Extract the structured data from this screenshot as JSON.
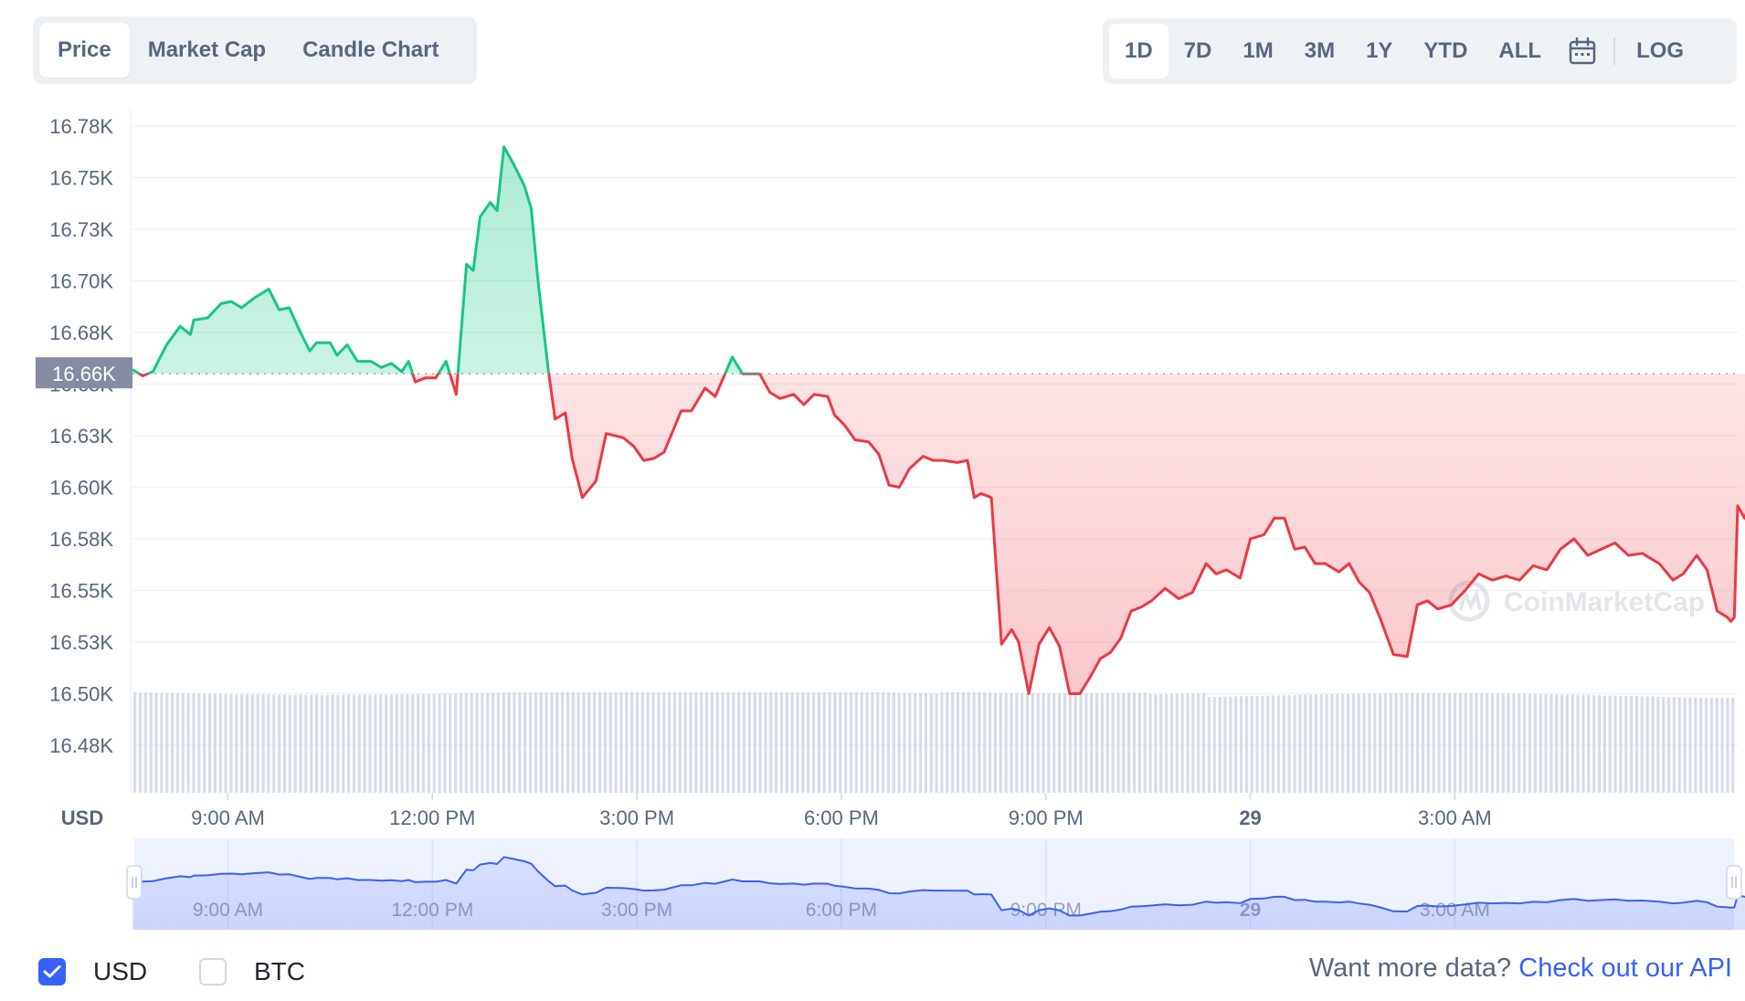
{
  "view_tabs": [
    "Price",
    "Market Cap",
    "Candle Chart"
  ],
  "range_tabs": [
    "1D",
    "7D",
    "1M",
    "3M",
    "1Y",
    "YTD",
    "ALL"
  ],
  "log_label": "LOG",
  "options": {
    "usd": "USD",
    "btc": "BTC"
  },
  "api": {
    "text": "Want more data?",
    "link": "Check out our API"
  },
  "watermark": "CoinMarketCap",
  "colors": {
    "up": "#16c784",
    "down": "#ea3943",
    "accent": "#3861fb"
  },
  "chart_data": {
    "type": "line",
    "currency_label": "USD",
    "y_ticks": [
      "16.78K",
      "16.75K",
      "16.73K",
      "16.70K",
      "16.68K",
      "16.65K",
      "16.63K",
      "16.60K",
      "16.58K",
      "16.55K",
      "16.53K",
      "16.50K",
      "16.48K"
    ],
    "ylim": [
      16460,
      16790
    ],
    "reference_value": 16660,
    "reference_label": "16.66K",
    "x_ticks": [
      "9:00 AM",
      "12:00 PM",
      "3:00 PM",
      "6:00 PM",
      "9:00 PM",
      "29",
      "3:00 AM"
    ],
    "x_range_hours": [
      7.6,
      31.15
    ],
    "series": [
      {
        "values": [
          [
            7.6,
            16662
          ],
          [
            7.75,
            16659
          ],
          [
            7.9,
            16661
          ],
          [
            8.1,
            16674
          ],
          [
            8.3,
            16683
          ],
          [
            8.45,
            16679
          ],
          [
            8.5,
            16686
          ],
          [
            8.7,
            16687
          ],
          [
            8.9,
            16694
          ],
          [
            9.05,
            16695
          ],
          [
            9.2,
            16692
          ],
          [
            9.4,
            16697
          ],
          [
            9.6,
            16701
          ],
          [
            9.75,
            16691
          ],
          [
            9.9,
            16692
          ],
          [
            10.05,
            16681
          ],
          [
            10.2,
            16671
          ],
          [
            10.3,
            16675
          ],
          [
            10.5,
            16675
          ],
          [
            10.6,
            16669
          ],
          [
            10.75,
            16674
          ],
          [
            10.9,
            16666
          ],
          [
            11.1,
            16666
          ],
          [
            11.25,
            16663
          ],
          [
            11.4,
            16665
          ],
          [
            11.55,
            16661
          ],
          [
            11.65,
            16666
          ],
          [
            11.75,
            16656
          ],
          [
            11.9,
            16658
          ],
          [
            12.05,
            16658
          ],
          [
            12.2,
            16666
          ],
          [
            12.35,
            16650
          ],
          [
            12.5,
            16713
          ],
          [
            12.6,
            16710
          ],
          [
            12.7,
            16736
          ],
          [
            12.85,
            16743
          ],
          [
            12.95,
            16739
          ],
          [
            13.05,
            16770
          ],
          [
            13.2,
            16761
          ],
          [
            13.35,
            16751
          ],
          [
            13.45,
            16740
          ],
          [
            13.55,
            16705
          ],
          [
            13.7,
            16662
          ],
          [
            13.8,
            16638
          ],
          [
            13.95,
            16641
          ],
          [
            14.05,
            16619
          ],
          [
            14.2,
            16600
          ],
          [
            14.4,
            16608
          ],
          [
            14.55,
            16631
          ],
          [
            14.8,
            16629
          ],
          [
            14.95,
            16625
          ],
          [
            15.1,
            16618
          ],
          [
            15.25,
            16619
          ],
          [
            15.4,
            16622
          ],
          [
            15.65,
            16642
          ],
          [
            15.8,
            16642
          ],
          [
            16.0,
            16653
          ],
          [
            16.15,
            16649
          ],
          [
            16.4,
            16668
          ],
          [
            16.55,
            16660
          ],
          [
            16.8,
            16660
          ],
          [
            16.95,
            16651
          ],
          [
            17.1,
            16648
          ],
          [
            17.3,
            16650
          ],
          [
            17.45,
            16645
          ],
          [
            17.6,
            16650
          ],
          [
            17.8,
            16649
          ],
          [
            17.9,
            16640
          ],
          [
            18.05,
            16635
          ],
          [
            18.2,
            16628
          ],
          [
            18.4,
            16627
          ],
          [
            18.55,
            16621
          ],
          [
            18.7,
            16606
          ],
          [
            18.85,
            16605
          ],
          [
            19.0,
            16614
          ],
          [
            19.2,
            16620
          ],
          [
            19.35,
            16618
          ],
          [
            19.5,
            16618
          ],
          [
            19.7,
            16617
          ],
          [
            19.85,
            16618
          ],
          [
            19.95,
            16600
          ],
          [
            20.05,
            16602
          ],
          [
            20.2,
            16600
          ],
          [
            20.35,
            16529
          ],
          [
            20.5,
            16536
          ],
          [
            20.6,
            16530
          ],
          [
            20.75,
            16505
          ],
          [
            20.9,
            16529
          ],
          [
            21.05,
            16537
          ],
          [
            21.2,
            16528
          ],
          [
            21.35,
            16505
          ],
          [
            21.5,
            16505
          ],
          [
            21.65,
            16513
          ],
          [
            21.8,
            16522
          ],
          [
            21.95,
            16525
          ],
          [
            22.1,
            16532
          ],
          [
            22.25,
            16545
          ],
          [
            22.4,
            16547
          ],
          [
            22.55,
            16550
          ],
          [
            22.75,
            16556
          ],
          [
            22.95,
            16551
          ],
          [
            23.15,
            16554
          ],
          [
            23.35,
            16568
          ],
          [
            23.5,
            16563
          ],
          [
            23.65,
            16565
          ],
          [
            23.85,
            16561
          ],
          [
            24.0,
            16580
          ],
          [
            24.2,
            16582
          ],
          [
            24.35,
            16590
          ],
          [
            24.5,
            16590
          ],
          [
            24.65,
            16575
          ],
          [
            24.8,
            16576
          ],
          [
            24.95,
            16568
          ],
          [
            25.1,
            16568
          ],
          [
            25.3,
            16564
          ],
          [
            25.45,
            16568
          ],
          [
            25.6,
            16559
          ],
          [
            25.75,
            16554
          ],
          [
            25.9,
            16542
          ],
          [
            26.1,
            16524
          ],
          [
            26.3,
            16523
          ],
          [
            26.45,
            16548
          ],
          [
            26.6,
            16550
          ],
          [
            26.75,
            16546
          ],
          [
            26.95,
            16548
          ],
          [
            27.15,
            16555
          ],
          [
            27.35,
            16563
          ],
          [
            27.55,
            16560
          ],
          [
            27.75,
            16562
          ],
          [
            27.95,
            16560
          ],
          [
            28.15,
            16567
          ],
          [
            28.35,
            16565
          ],
          [
            28.55,
            16575
          ],
          [
            28.75,
            16580
          ],
          [
            28.95,
            16572
          ],
          [
            29.15,
            16575
          ],
          [
            29.35,
            16578
          ],
          [
            29.55,
            16572
          ],
          [
            29.75,
            16573
          ],
          [
            30.0,
            16568
          ],
          [
            30.2,
            16560
          ],
          [
            30.35,
            16563
          ],
          [
            30.55,
            16572
          ],
          [
            30.7,
            16565
          ],
          [
            30.85,
            16545
          ],
          [
            31.0,
            16542
          ],
          [
            31.05,
            16540
          ],
          [
            31.1,
            16542
          ],
          [
            31.15,
            16596
          ],
          [
            31.25,
            16590
          ],
          [
            31.35,
            16599
          ],
          [
            31.5,
            16590
          ],
          [
            31.6,
            16599
          ],
          [
            31.7,
            16596
          ],
          [
            31.8,
            16593
          ],
          [
            31.9,
            16590
          ]
        ]
      }
    ]
  }
}
